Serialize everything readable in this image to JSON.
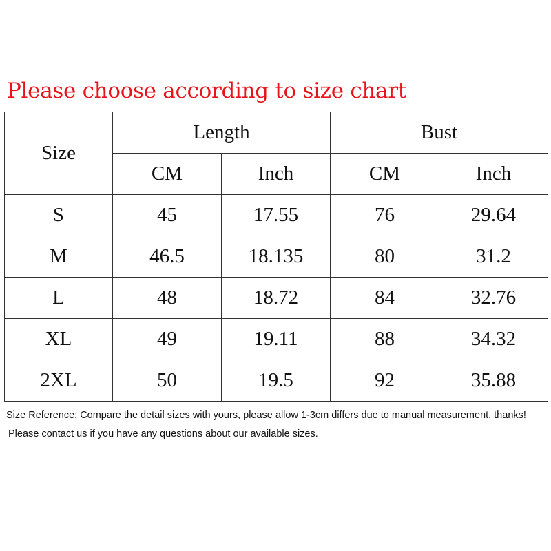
{
  "title": "Please choose according to size chart",
  "chart_data": {
    "type": "table",
    "header": {
      "size": "Size",
      "groups": [
        "Length",
        "Bust"
      ],
      "units": [
        "CM",
        "Inch",
        "CM",
        "Inch"
      ]
    },
    "rows": [
      [
        "S",
        "45",
        "17.55",
        "76",
        "29.64"
      ],
      [
        "M",
        "46.5",
        "18.135",
        "80",
        "31.2"
      ],
      [
        "L",
        "48",
        "18.72",
        "84",
        "32.76"
      ],
      [
        "XL",
        "49",
        "19.11",
        "88",
        "34.32"
      ],
      [
        "2XL",
        "50",
        "19.5",
        "92",
        "35.88"
      ]
    ]
  },
  "notes": [
    "Size Reference: Compare the detail sizes with yours, please allow 1-3cm differs due to manual measurement, thanks!",
    "Please contact us if you have any questions about our available sizes."
  ]
}
